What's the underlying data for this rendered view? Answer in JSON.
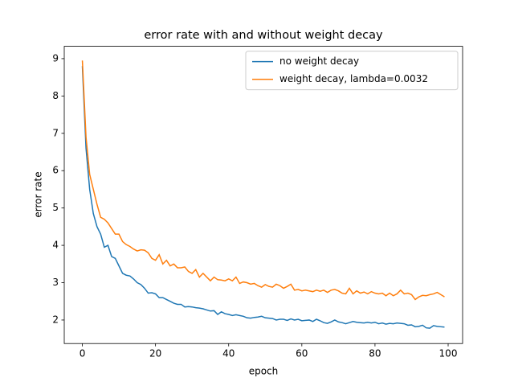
{
  "chart_data": {
    "type": "line",
    "title": "error rate with and without weight decay",
    "xlabel": "epoch",
    "ylabel": "error rate",
    "x": [
      0,
      1,
      2,
      3,
      4,
      5,
      6,
      7,
      8,
      9,
      10,
      11,
      12,
      13,
      14,
      15,
      16,
      17,
      18,
      19,
      20,
      21,
      22,
      23,
      24,
      25,
      26,
      27,
      28,
      29,
      30,
      31,
      32,
      33,
      34,
      35,
      36,
      37,
      38,
      39,
      40,
      41,
      42,
      43,
      44,
      45,
      46,
      47,
      48,
      49,
      50,
      51,
      52,
      53,
      54,
      55,
      56,
      57,
      58,
      59,
      60,
      61,
      62,
      63,
      64,
      65,
      66,
      67,
      68,
      69,
      70,
      71,
      72,
      73,
      74,
      75,
      76,
      77,
      78,
      79,
      80,
      81,
      82,
      83,
      84,
      85,
      86,
      87,
      88,
      89,
      90,
      91,
      92,
      93,
      94,
      95,
      96,
      97,
      98,
      99
    ],
    "series": [
      {
        "name": "no weight decay",
        "color": "#1f77b4",
        "values": [
          8.8,
          6.6,
          5.5,
          4.85,
          4.5,
          4.3,
          3.95,
          4.0,
          3.7,
          3.65,
          3.45,
          3.25,
          3.2,
          3.18,
          3.1,
          3.0,
          2.95,
          2.85,
          2.72,
          2.73,
          2.7,
          2.6,
          2.6,
          2.55,
          2.5,
          2.45,
          2.42,
          2.42,
          2.35,
          2.36,
          2.35,
          2.33,
          2.32,
          2.3,
          2.27,
          2.24,
          2.25,
          2.15,
          2.22,
          2.17,
          2.15,
          2.12,
          2.14,
          2.12,
          2.1,
          2.06,
          2.05,
          2.07,
          2.08,
          2.1,
          2.06,
          2.05,
          2.04,
          2.0,
          2.02,
          2.02,
          1.99,
          2.03,
          2.0,
          2.02,
          1.98,
          1.99,
          2.0,
          1.96,
          2.02,
          1.98,
          1.93,
          1.91,
          1.95,
          2.0,
          1.95,
          1.93,
          1.9,
          1.93,
          1.96,
          1.94,
          1.93,
          1.92,
          1.94,
          1.92,
          1.94,
          1.9,
          1.92,
          1.89,
          1.91,
          1.9,
          1.92,
          1.91,
          1.9,
          1.86,
          1.87,
          1.82,
          1.83,
          1.86,
          1.79,
          1.78,
          1.85,
          1.83,
          1.82,
          1.81
        ]
      },
      {
        "name": "weight decay, lambda=0.0032",
        "color": "#ff7f0e",
        "values": [
          8.95,
          6.9,
          5.9,
          5.5,
          5.1,
          4.75,
          4.7,
          4.6,
          4.45,
          4.3,
          4.3,
          4.1,
          4.02,
          3.97,
          3.9,
          3.85,
          3.88,
          3.87,
          3.8,
          3.65,
          3.6,
          3.75,
          3.5,
          3.6,
          3.45,
          3.5,
          3.4,
          3.4,
          3.42,
          3.3,
          3.25,
          3.35,
          3.15,
          3.25,
          3.15,
          3.05,
          3.15,
          3.08,
          3.07,
          3.05,
          3.1,
          3.05,
          3.15,
          2.98,
          3.02,
          3.0,
          2.96,
          2.98,
          2.92,
          2.88,
          2.95,
          2.9,
          2.88,
          2.96,
          2.92,
          2.85,
          2.9,
          2.96,
          2.8,
          2.82,
          2.78,
          2.8,
          2.78,
          2.76,
          2.8,
          2.77,
          2.8,
          2.74,
          2.8,
          2.82,
          2.78,
          2.72,
          2.7,
          2.85,
          2.7,
          2.78,
          2.72,
          2.75,
          2.7,
          2.76,
          2.72,
          2.7,
          2.72,
          2.65,
          2.72,
          2.65,
          2.7,
          2.8,
          2.7,
          2.72,
          2.68,
          2.55,
          2.62,
          2.66,
          2.65,
          2.68,
          2.7,
          2.74,
          2.68,
          2.62
        ]
      }
    ],
    "xlim": [
      -4.95,
      103.95
    ],
    "xticks": [
      0,
      20,
      40,
      60,
      80,
      100
    ],
    "ylim": [
      1.37,
      9.33
    ],
    "yticks": [
      2,
      3,
      4,
      5,
      6,
      7,
      8,
      9
    ],
    "legend": "upper right"
  }
}
